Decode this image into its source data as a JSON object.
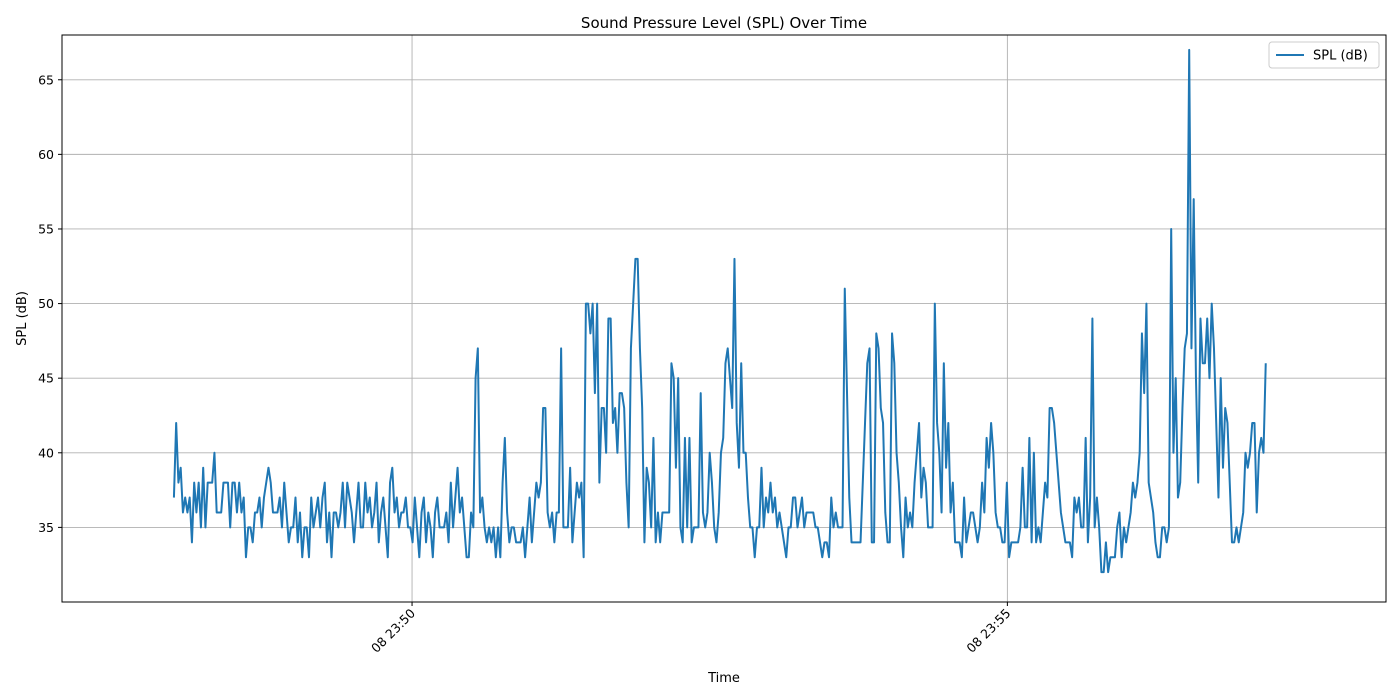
{
  "chart_data": {
    "type": "line",
    "title": "Sound Pressure Level (SPL) Over Time",
    "xlabel": "Time",
    "ylabel": "SPL (dB)",
    "legend": {
      "position": "top-right",
      "entries": [
        "SPL (dB)"
      ]
    },
    "grid": true,
    "series_color": "#1f77b4",
    "x_start": "08 23:48",
    "x_end": "08 23:58",
    "x_ticks": [
      "08 23:50",
      "08 23:55"
    ],
    "ylim": [
      30,
      68
    ],
    "y_ticks": [
      35,
      40,
      45,
      50,
      55,
      60,
      65
    ],
    "series": [
      {
        "name": "SPL (dB)",
        "values": [
          37,
          42,
          38,
          39,
          36,
          37,
          36,
          37,
          34,
          38,
          36,
          38,
          35,
          39,
          35,
          38,
          38,
          38,
          40,
          36,
          36,
          36,
          38,
          38,
          38,
          35,
          38,
          38,
          36,
          38,
          36,
          37,
          33,
          35,
          35,
          34,
          36,
          36,
          37,
          35,
          37,
          38,
          39,
          38,
          36,
          36,
          36,
          37,
          35,
          38,
          36,
          34,
          35,
          35,
          37,
          34,
          36,
          33,
          35,
          35,
          33,
          37,
          35,
          36,
          37,
          35,
          37,
          38,
          34,
          36,
          33,
          36,
          36,
          35,
          36,
          38,
          35,
          38,
          37,
          36,
          34,
          36,
          38,
          35,
          35,
          38,
          36,
          37,
          35,
          36,
          38,
          34,
          36,
          37,
          35,
          33,
          38,
          39,
          36,
          37,
          35,
          36,
          36,
          37,
          35,
          35,
          34,
          37,
          35,
          33,
          36,
          37,
          34,
          36,
          35,
          33,
          36,
          37,
          35,
          35,
          35,
          36,
          34,
          38,
          35,
          37,
          39,
          36,
          37,
          35,
          33,
          33,
          36,
          35,
          45,
          47,
          36,
          37,
          35,
          34,
          35,
          34,
          35,
          33,
          35,
          33,
          38,
          41,
          36,
          34,
          35,
          35,
          34,
          34,
          34,
          35,
          33,
          35,
          37,
          34,
          36,
          38,
          37,
          38,
          43,
          43,
          36,
          35,
          36,
          34,
          36,
          36,
          47,
          35,
          35,
          35,
          39,
          34,
          36,
          38,
          37,
          38,
          33,
          50,
          50,
          48,
          50,
          44,
          50,
          38,
          43,
          43,
          40,
          49,
          49,
          42,
          43,
          40,
          44,
          44,
          43,
          38,
          35,
          47,
          50,
          53,
          53,
          47,
          43,
          34,
          39,
          38,
          35,
          41,
          34,
          36,
          34,
          36,
          36,
          36,
          36,
          46,
          45,
          39,
          45,
          35,
          34,
          41,
          35,
          41,
          34,
          35,
          35,
          35,
          44,
          36,
          35,
          36,
          40,
          38,
          35,
          34,
          36,
          40,
          41,
          46,
          47,
          45,
          43,
          53,
          42,
          39,
          46,
          40,
          40,
          37,
          35,
          35,
          33,
          35,
          35,
          39,
          35,
          37,
          36,
          38,
          36,
          37,
          35,
          36,
          35,
          34,
          33,
          35,
          35,
          37,
          37,
          35,
          36,
          37,
          35,
          36,
          36,
          36,
          36,
          35,
          35,
          34,
          33,
          34,
          34,
          33,
          37,
          35,
          36,
          35,
          35,
          35,
          51,
          44,
          37,
          34,
          34,
          34,
          34,
          34,
          38,
          42,
          46,
          47,
          34,
          34,
          48,
          47,
          43,
          42,
          36,
          34,
          34,
          48,
          46,
          40,
          38,
          35,
          33,
          37,
          35,
          36,
          35,
          38,
          40,
          42,
          37,
          39,
          38,
          35,
          35,
          35,
          50,
          42,
          40,
          36,
          46,
          39,
          42,
          36,
          38,
          34,
          34,
          34,
          33,
          37,
          34,
          35,
          36,
          36,
          35,
          34,
          35,
          38,
          36,
          41,
          39,
          42,
          40,
          36,
          35,
          35,
          34,
          34,
          38,
          33,
          34,
          34,
          34,
          34,
          35,
          39,
          35,
          35,
          41,
          34,
          40,
          34,
          35,
          34,
          36,
          38,
          37,
          43,
          43,
          42,
          40,
          38,
          36,
          35,
          34,
          34,
          34,
          33,
          37,
          36,
          37,
          35,
          35,
          41,
          34,
          37,
          49,
          35,
          37,
          35,
          32,
          32,
          34,
          32,
          33,
          33,
          33,
          35,
          36,
          33,
          35,
          34,
          35,
          36,
          38,
          37,
          38,
          40,
          48,
          44,
          50,
          38,
          37,
          36,
          34,
          33,
          33,
          35,
          35,
          34,
          35,
          55,
          40,
          45,
          37,
          38,
          43,
          47,
          48,
          67,
          47,
          57,
          45,
          38,
          49,
          46,
          46,
          49,
          45,
          50,
          47,
          42,
          37,
          45,
          39,
          43,
          42,
          38,
          34,
          34,
          35,
          34,
          35,
          36,
          40,
          39,
          40,
          42,
          42,
          36,
          40,
          41,
          40,
          46
        ]
      }
    ]
  }
}
